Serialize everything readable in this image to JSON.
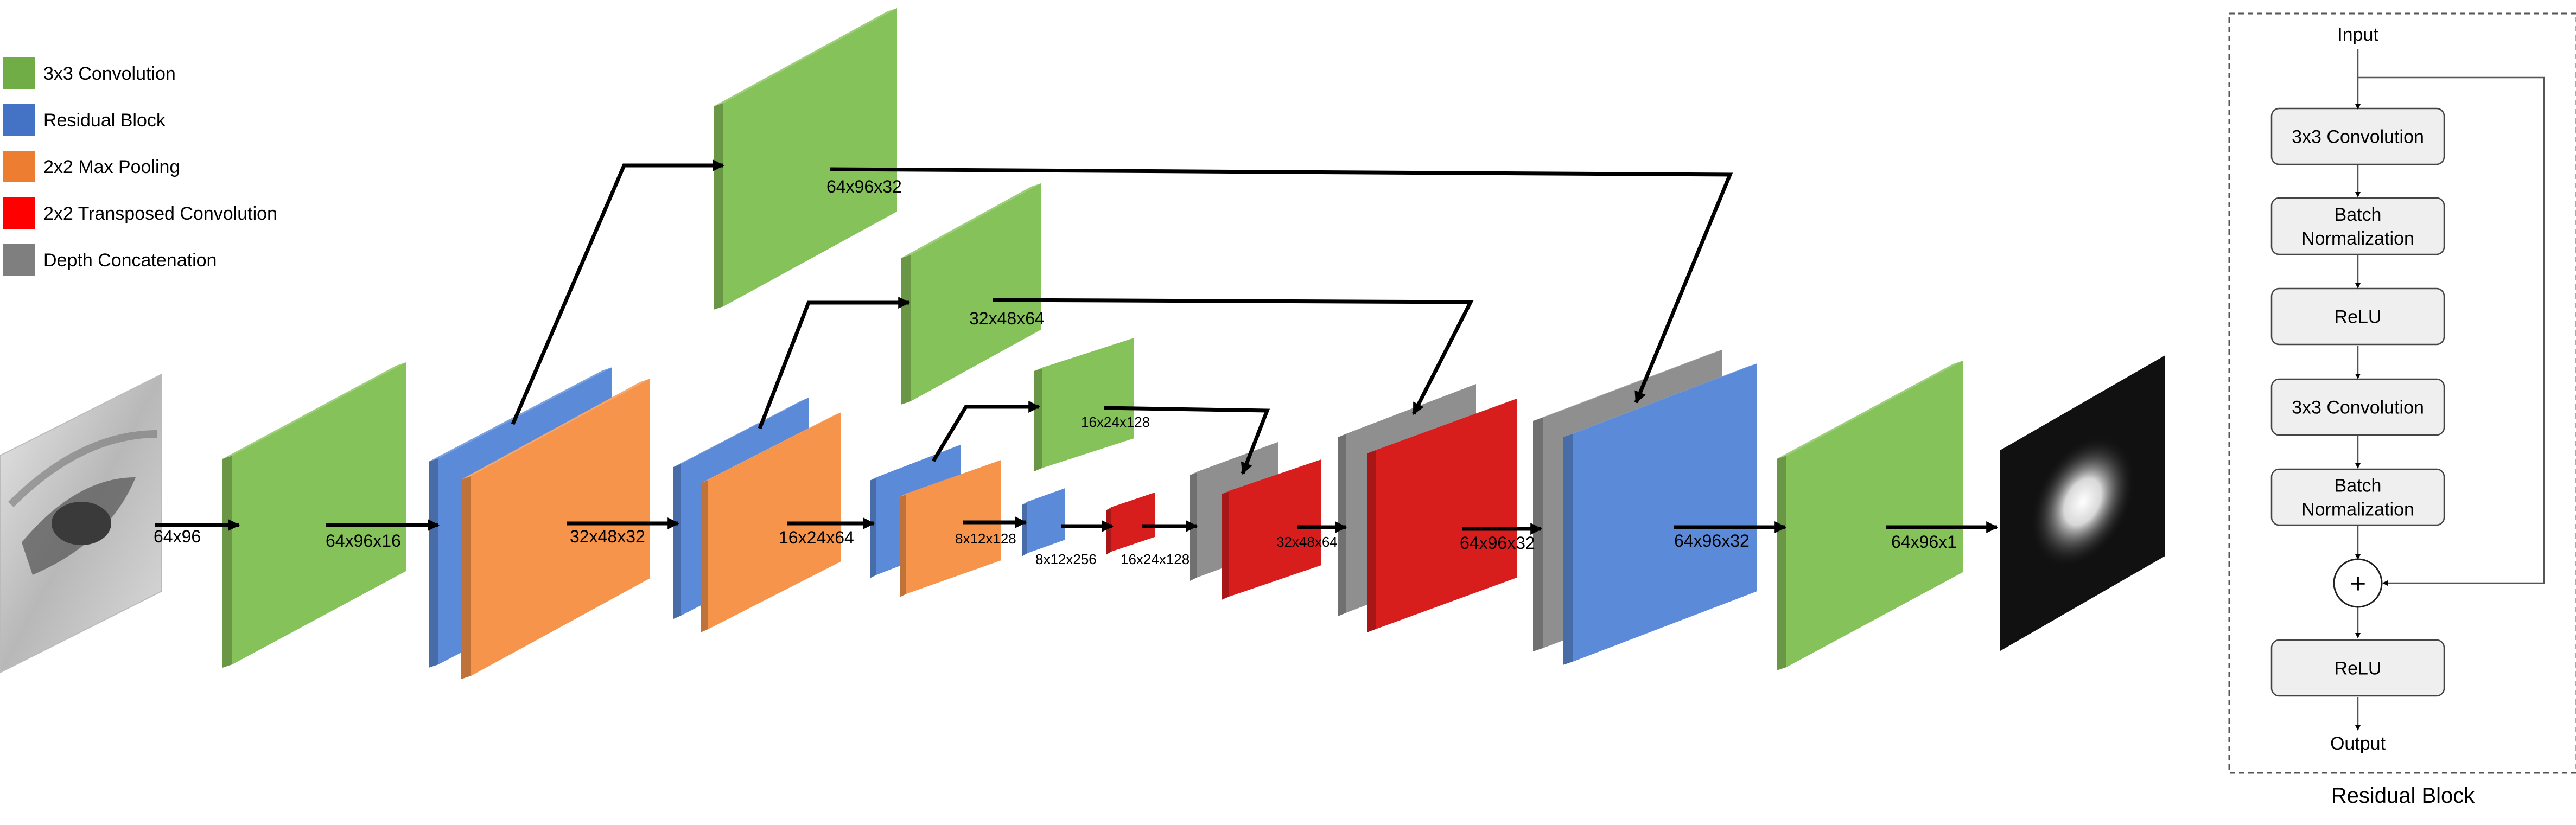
{
  "colors": {
    "conv": "#86c25a",
    "residual": "#5b8ad8",
    "pool": "#f5944a",
    "transposed": "#d81d1d",
    "concat": "#8f8f8f",
    "output_bg": "#111111"
  },
  "legend": [
    {
      "label": "3x3 Convolution",
      "color": "#70ad47"
    },
    {
      "label": "Residual Block",
      "color": "#4472c4"
    },
    {
      "label": "2x2 Max Pooling",
      "color": "#ed7d31"
    },
    {
      "label": "2x2 Transposed Convolution",
      "color": "#ff0000"
    },
    {
      "label": "Depth Concatenation",
      "color": "#7f7f7f"
    }
  ],
  "labels": {
    "input": "64x96",
    "conv1": "64x96x16",
    "pool1": "32x48x32",
    "pool2": "16x24x64",
    "pool3": "8x12x128",
    "res4": "8x12x256",
    "tconv4": "16x24x128",
    "tconv3": "32x48x64",
    "tconv2": "64x96x32",
    "res_out": "64x96x32",
    "output": "64x96x1",
    "skip1": "64x96x32",
    "skip2": "32x48x64",
    "skip3": "16x24x128"
  },
  "residual_block": {
    "title": "Residual Block",
    "input": "Input",
    "steps": [
      "3x3 Convolution",
      "Batch\nNormalization",
      "ReLU",
      "3x3 Convolution",
      "Batch\nNormalization"
    ],
    "add": "+",
    "final": "ReLU",
    "output": "Output"
  }
}
